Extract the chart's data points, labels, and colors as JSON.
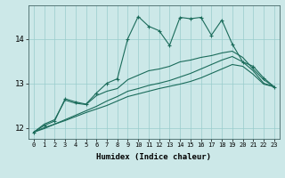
{
  "xlabel": "Humidex (Indice chaleur)",
  "background_color": "#cce8e8",
  "grid_color": "#99cccc",
  "line_color": "#1a6b5a",
  "xlim": [
    -0.5,
    23.5
  ],
  "ylim": [
    11.75,
    14.75
  ],
  "yticks": [
    12,
    13,
    14
  ],
  "xticks": [
    0,
    1,
    2,
    3,
    4,
    5,
    6,
    7,
    8,
    9,
    10,
    11,
    12,
    13,
    14,
    15,
    16,
    17,
    18,
    19,
    20,
    21,
    22,
    23
  ],
  "x": [
    0,
    1,
    2,
    3,
    4,
    5,
    6,
    7,
    8,
    9,
    10,
    11,
    12,
    13,
    14,
    15,
    16,
    17,
    18,
    19,
    20,
    21,
    22,
    23
  ],
  "line1": [
    11.9,
    12.05,
    12.15,
    12.65,
    12.58,
    12.53,
    12.78,
    13.0,
    13.1,
    14.0,
    14.5,
    14.28,
    14.18,
    13.85,
    14.48,
    14.45,
    14.48,
    14.08,
    14.42,
    13.88,
    13.48,
    13.38,
    13.12,
    12.92
  ],
  "line2": [
    11.9,
    12.08,
    12.18,
    12.62,
    12.55,
    12.52,
    12.72,
    12.82,
    12.88,
    13.08,
    13.18,
    13.28,
    13.32,
    13.38,
    13.48,
    13.52,
    13.58,
    13.62,
    13.68,
    13.72,
    13.58,
    13.32,
    13.08,
    12.92
  ],
  "line3": [
    11.9,
    12.0,
    12.08,
    12.18,
    12.28,
    12.38,
    12.48,
    12.6,
    12.7,
    12.82,
    12.88,
    12.95,
    13.0,
    13.06,
    13.14,
    13.22,
    13.32,
    13.42,
    13.52,
    13.6,
    13.48,
    13.28,
    13.0,
    12.92
  ],
  "line4": [
    11.9,
    11.98,
    12.08,
    12.16,
    12.25,
    12.34,
    12.42,
    12.5,
    12.6,
    12.7,
    12.76,
    12.82,
    12.88,
    12.93,
    12.98,
    13.04,
    13.12,
    13.22,
    13.32,
    13.42,
    13.38,
    13.2,
    12.98,
    12.92
  ]
}
